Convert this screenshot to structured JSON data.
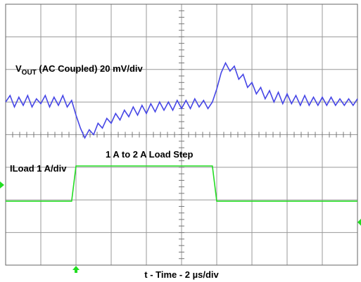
{
  "chart_data": {
    "type": "line",
    "xlabel": "t - Time - 2 µs/div",
    "vout_label": {
      "main": "V",
      "sub": "OUT",
      "rest": " (AC Coupled) 20 mV/div"
    },
    "annotations": [
      "1 A to 2 A Load Step",
      "ILoad 1 A/div"
    ],
    "xlim": [
      0,
      20
    ],
    "ylim": [
      0,
      8
    ],
    "grid": true,
    "x": [
      0,
      0.25,
      0.5,
      0.75,
      1,
      1.25,
      1.5,
      1.75,
      2,
      2.25,
      2.5,
      2.75,
      3,
      3.25,
      3.5,
      3.75,
      4,
      4.25,
      4.5,
      4.75,
      5,
      5.25,
      5.5,
      5.75,
      6,
      6.25,
      6.5,
      6.75,
      7,
      7.25,
      7.5,
      7.75,
      8,
      8.25,
      8.5,
      8.75,
      9,
      9.25,
      9.5,
      9.75,
      10,
      10.25,
      10.5,
      10.75,
      11,
      11.25,
      11.5,
      11.75,
      12,
      12.25,
      12.5,
      12.75,
      13,
      13.25,
      13.5,
      13.75,
      14,
      14.25,
      14.5,
      14.75,
      15,
      15.25,
      15.5,
      15.75,
      16,
      16.25,
      16.5,
      16.75,
      17,
      17.25,
      17.5,
      17.75,
      18,
      18.25,
      18.5,
      18.75,
      19,
      19.25,
      19.5,
      19.75,
      20
    ],
    "series": [
      {
        "color": "#4646e6",
        "values": [
          5.0,
          5.2,
          4.85,
          5.15,
          4.9,
          5.2,
          4.85,
          5.1,
          4.95,
          5.2,
          4.85,
          5.15,
          4.9,
          5.2,
          4.85,
          5.05,
          4.6,
          4.2,
          3.9,
          4.15,
          4.0,
          4.35,
          4.2,
          4.5,
          4.35,
          4.65,
          4.45,
          4.75,
          4.55,
          4.85,
          4.6,
          4.9,
          4.65,
          4.95,
          4.7,
          5.0,
          4.75,
          5.0,
          4.75,
          5.05,
          4.8,
          5.05,
          4.8,
          5.1,
          4.85,
          5.05,
          4.8,
          5.0,
          5.4,
          5.9,
          6.2,
          5.95,
          6.1,
          5.7,
          5.85,
          5.45,
          5.6,
          5.25,
          5.45,
          5.1,
          5.35,
          5.0,
          5.3,
          4.95,
          5.25,
          4.95,
          5.2,
          4.9,
          5.2,
          4.9,
          5.15,
          4.9,
          5.15,
          4.9,
          5.15,
          4.9,
          5.1,
          4.9,
          5.1,
          4.9,
          5.1
        ]
      },
      {
        "color": "#22dd22",
        "values": [
          1.96,
          1.96,
          1.96,
          1.96,
          1.96,
          1.96,
          1.96,
          1.96,
          1.96,
          1.96,
          1.96,
          1.96,
          1.96,
          1.96,
          1.96,
          1.96,
          3.04,
          3.04,
          3.04,
          3.04,
          3.04,
          3.04,
          3.04,
          3.04,
          3.04,
          3.04,
          3.04,
          3.04,
          3.04,
          3.04,
          3.04,
          3.04,
          3.04,
          3.04,
          3.04,
          3.04,
          3.04,
          3.04,
          3.04,
          3.04,
          3.04,
          3.04,
          3.04,
          3.04,
          3.04,
          3.04,
          3.04,
          3.04,
          1.96,
          1.96,
          1.96,
          1.96,
          1.96,
          1.96,
          1.96,
          1.96,
          1.96,
          1.96,
          1.96,
          1.96,
          1.96,
          1.96,
          1.96,
          1.96,
          1.96,
          1.96,
          1.96,
          1.96,
          1.96,
          1.96,
          1.96,
          1.96,
          1.96,
          1.96,
          1.96,
          1.96,
          1.96,
          1.96,
          1.96,
          1.96,
          1.96
        ]
      }
    ]
  }
}
